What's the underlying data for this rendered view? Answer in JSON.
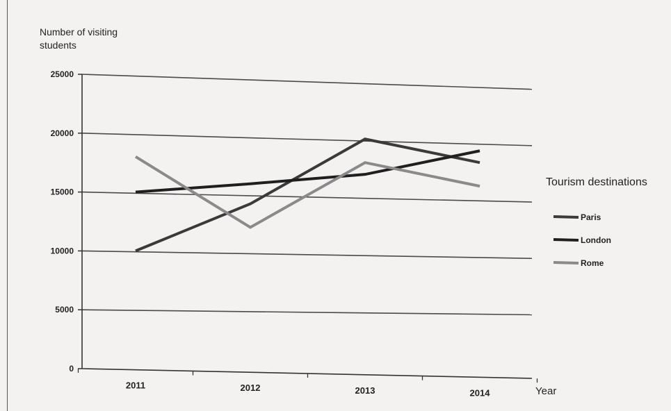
{
  "chart_data": {
    "type": "line",
    "title": "",
    "ylabel_line1": "Number of visiting",
    "ylabel_line2": "students",
    "xlabel": "Year",
    "categories": [
      "2011",
      "2012",
      "2013",
      "2014"
    ],
    "y_ticks": [
      "0",
      "5000",
      "10000",
      "15000",
      "20000",
      "25000"
    ],
    "ylim": [
      0,
      25000
    ],
    "grid": true,
    "legend_title": "Tourism destinations",
    "legend_position": "right",
    "series": [
      {
        "name": "Paris",
        "values": [
          10000,
          14000,
          19500,
          17500
        ],
        "color": "#3a3a3a"
      },
      {
        "name": "London",
        "values": [
          15000,
          15700,
          16500,
          18500
        ],
        "color": "#1f1f1f"
      },
      {
        "name": "Rome",
        "values": [
          18000,
          12000,
          17500,
          15500
        ],
        "color": "#8a8a8a"
      }
    ]
  }
}
